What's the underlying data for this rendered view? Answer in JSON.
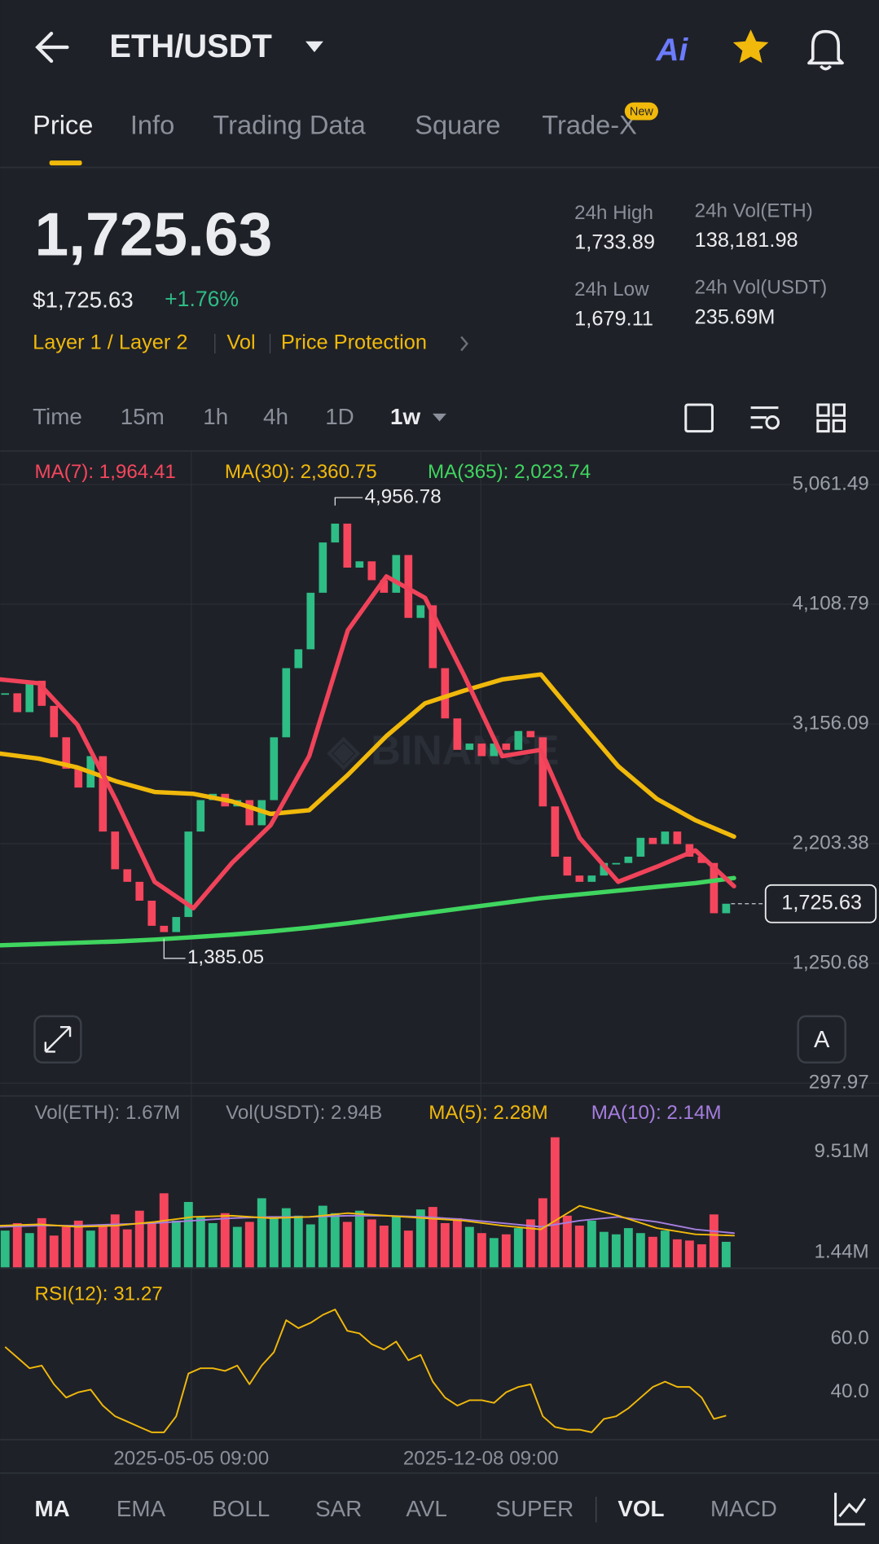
{
  "header": {
    "title": "ETH/USDT",
    "ai": "Ai"
  },
  "tabs": [
    "Price",
    "Info",
    "Trading Data",
    "Square",
    "Trade-X"
  ],
  "tab_badge": "New",
  "ticker": {
    "price": "1,725.63",
    "usd_price": "$1,725.63",
    "change": "+1.76%",
    "tags": [
      "Layer 1 / Layer 2",
      "Vol",
      "Price Protection"
    ]
  },
  "stats": [
    {
      "label": "24h High",
      "value": "1,733.89"
    },
    {
      "label": "24h Vol(ETH)",
      "value": "138,181.98"
    },
    {
      "label": "24h Low",
      "value": "1,679.11"
    },
    {
      "label": "24h Vol(USDT)",
      "value": "235.69M"
    }
  ],
  "timeframes": [
    "Time",
    "15m",
    "1h",
    "4h",
    "1D",
    "1w"
  ],
  "price_chart": {
    "legend": [
      "MA(7): 1,964.41",
      "MA(30): 2,360.75",
      "MA(365): 2,023.74"
    ],
    "ylim": [
      297.97,
      5061.49
    ],
    "yticks": [
      {
        "value": 5061.49,
        "label": "5,061.49"
      },
      {
        "value": 4108.79,
        "label": "4,108.79"
      },
      {
        "value": 3156.09,
        "label": "3,156.09"
      },
      {
        "value": 2203.38,
        "label": "2,203.38"
      },
      {
        "value": 1250.68,
        "label": "1,250.68"
      },
      {
        "value": 297.97,
        "label": "297.97"
      }
    ],
    "up_color": "#2ebd85",
    "down_color": "#f6465d",
    "closes": [
      3400,
      3250,
      3500,
      3300,
      3050,
      2800,
      2650,
      2900,
      2300,
      2000,
      1900,
      1750,
      1550,
      1500,
      1620,
      2300,
      2550,
      2600,
      2500,
      2550,
      2350,
      2550,
      3050,
      3600,
      3750,
      4200,
      4600,
      4750,
      4400,
      4450,
      4300,
      4200,
      4500,
      4000,
      4100,
      3600,
      3200,
      2950,
      3000,
      2900,
      3000,
      2950,
      3100,
      3050,
      2500,
      2100,
      1950,
      1900,
      1950,
      2050,
      2050,
      2100,
      2250,
      2200,
      2300,
      2200,
      2100,
      2050,
      1650,
      1725.63
    ],
    "series": [
      {
        "name": "MA(7)",
        "color": "#f0435a",
        "values": [
          3510,
          3480,
          3150,
          2550,
          1900,
          1690,
          2050,
          2350,
          2900,
          3900,
          4330,
          4160,
          3550,
          2900,
          2950,
          2250,
          1900,
          2020,
          2150,
          1865
        ]
      },
      {
        "name": "MA(30)",
        "color": "#f0b90b",
        "values": [
          2920,
          2880,
          2810,
          2700,
          2615,
          2600,
          2540,
          2440,
          2470,
          2750,
          3060,
          3320,
          3420,
          3510,
          3550,
          3180,
          2820,
          2560,
          2390,
          2260
        ]
      },
      {
        "name": "MA(365)",
        "color": "#3fd55f",
        "values": [
          1395,
          1405,
          1415,
          1425,
          1440,
          1460,
          1480,
          1505,
          1535,
          1570,
          1610,
          1650,
          1690,
          1730,
          1770,
          1800,
          1830,
          1860,
          1890,
          1930
        ]
      }
    ],
    "high": {
      "value": 4956.78,
      "label": "4,956.78"
    },
    "low": {
      "value": 1385.05,
      "label": "1,385.05"
    },
    "last": {
      "value": 1725.63,
      "label": "1,725.63"
    }
  },
  "volume_chart": {
    "legend": [
      "Vol(ETH): 1.67M",
      "Vol(USDT): 2.94B",
      "MA(5): 2.28M",
      "MA(10): 2.14M"
    ],
    "ylim": [
      0.25,
      9.51
    ],
    "yticks": [
      {
        "value": 9.51,
        "label": "9.51M"
      },
      {
        "value": 1.44,
        "label": "1.44M"
      }
    ],
    "values": [
      3.2,
      3.8,
      3.0,
      4.2,
      2.8,
      3.5,
      4.0,
      3.2,
      3.6,
      4.5,
      3.3,
      4.8,
      3.9,
      6.2,
      4.0,
      5.5,
      4.3,
      3.8,
      4.6,
      3.5,
      3.9,
      5.8,
      4.2,
      5.0,
      4.4,
      3.7,
      5.2,
      4.6,
      3.9,
      4.8,
      4.1,
      3.6,
      4.4,
      3.2,
      4.9,
      5.1,
      3.8,
      4.2,
      3.5,
      3.0,
      2.6,
      2.9,
      3.4,
      4.1,
      5.8,
      10.7,
      4.4,
      3.6,
      4.0,
      3.1,
      2.9,
      3.4,
      3.0,
      2.7,
      3.2,
      2.5,
      2.4,
      2.1,
      4.5,
      2.3
    ],
    "series": [
      {
        "name": "MA(5)",
        "color": "#f0b90b",
        "values": [
          3.6,
          3.7,
          3.5,
          3.6,
          3.9,
          4.3,
          4.4,
          4.2,
          4.3,
          4.6,
          4.4,
          4.2,
          4.0,
          3.6,
          3.3,
          5.2,
          4.4,
          3.4,
          2.9,
          2.8
        ]
      },
      {
        "name": "MA(10)",
        "color": "#a57ee0",
        "values": [
          3.5,
          3.6,
          3.6,
          3.7,
          3.8,
          4.0,
          4.2,
          4.3,
          4.3,
          4.4,
          4.4,
          4.3,
          4.1,
          3.8,
          3.5,
          4.0,
          4.3,
          3.9,
          3.3,
          3.0
        ]
      }
    ]
  },
  "rsi_chart": {
    "legend": "RSI(12): 31.27",
    "color": "#f0b90b",
    "ylim": [
      23,
      82
    ],
    "yticks": [
      {
        "value": 60,
        "label": "60.0"
      },
      {
        "value": 40,
        "label": "40.0"
      }
    ],
    "values": [
      57,
      53,
      49,
      50,
      43,
      38,
      40,
      41,
      35,
      31,
      29,
      27,
      25,
      25,
      31,
      47,
      49,
      49,
      48,
      50,
      43,
      50,
      55,
      67,
      64,
      66,
      69,
      71,
      63,
      62,
      58,
      56,
      59,
      52,
      54,
      44,
      38,
      35,
      37,
      37,
      36,
      40,
      42,
      43,
      31,
      27,
      26,
      26,
      25,
      30,
      31,
      34,
      38,
      42,
      44,
      42,
      42,
      38,
      30,
      31.27
    ]
  },
  "dates": [
    "2025-05-05 09:00",
    "2025-12-08 09:00"
  ],
  "indicators": [
    "MA",
    "EMA",
    "BOLL",
    "SAR",
    "AVL",
    "SUPER",
    "VOL",
    "MACD"
  ]
}
